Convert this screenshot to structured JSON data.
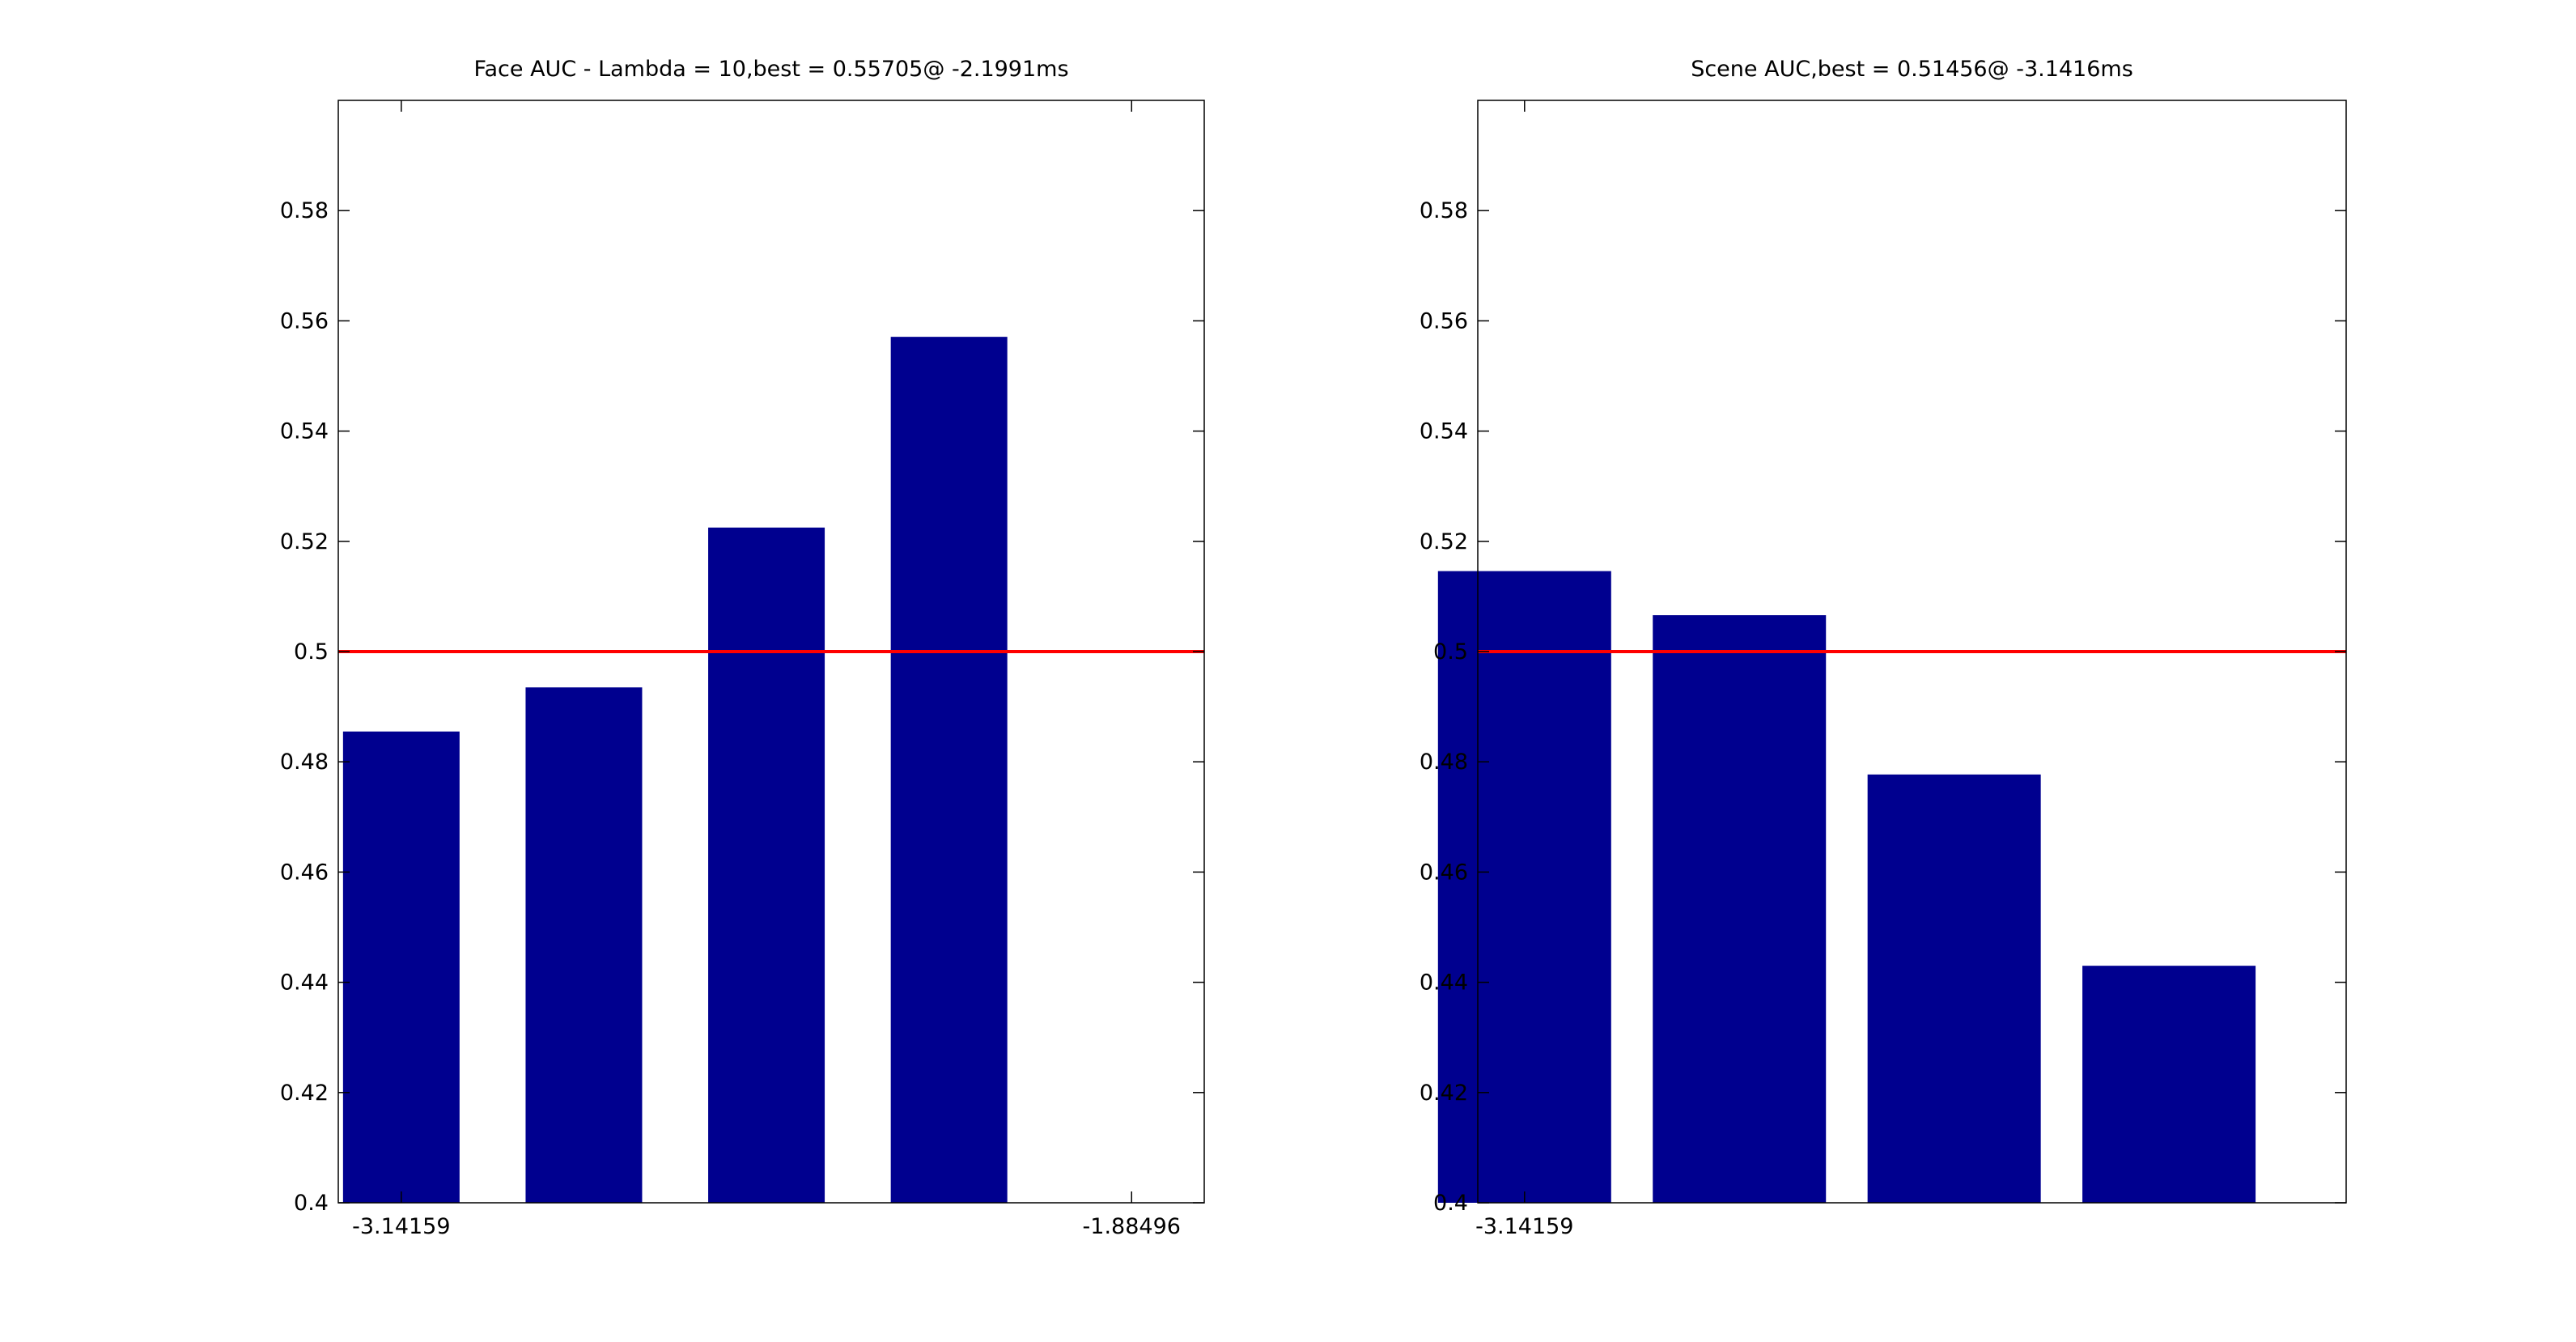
{
  "chart_data": [
    {
      "type": "bar",
      "title": "Face AUC - Lambda = 10,best = 0.55705@ -2.1991ms",
      "xlabel": "",
      "ylabel": "",
      "x": [
        -3.14159,
        -2.82743,
        -2.51327,
        -2.19911
      ],
      "values": [
        0.4855,
        0.4935,
        0.5225,
        0.5571
      ],
      "xlim": [
        -3.25,
        -1.76
      ],
      "ylim": [
        0.4,
        0.6
      ],
      "xticks": [
        -3.14159,
        -1.88496
      ],
      "xtick_labels": [
        "-3.14159",
        "-1.88496"
      ],
      "yticks": [
        0.4,
        0.42,
        0.44,
        0.46,
        0.48,
        0.5,
        0.52,
        0.54,
        0.56,
        0.58
      ],
      "ytick_labels": [
        "0.4",
        "0.42",
        "0.44",
        "0.46",
        "0.48",
        "0.5",
        "0.52",
        "0.54",
        "0.56",
        "0.58"
      ],
      "reference_line": {
        "y": 0.5,
        "color": "#ff0000"
      },
      "bar_color": "#00008f",
      "grid": false
    },
    {
      "type": "bar",
      "title": "Scene AUC,best = 0.51456@ -3.1416ms",
      "xlabel": "",
      "ylabel": "",
      "x": [
        -3.14159,
        -2.82743,
        -2.51327,
        -2.19911
      ],
      "values": [
        0.5146,
        0.5066,
        0.4777,
        0.443
      ],
      "xlim": [
        -3.21,
        -1.94
      ],
      "ylim": [
        0.4,
        0.6
      ],
      "xticks": [
        -3.14159
      ],
      "xtick_labels": [
        "-3.14159"
      ],
      "yticks": [
        0.4,
        0.42,
        0.44,
        0.46,
        0.48,
        0.5,
        0.52,
        0.54,
        0.56,
        0.58
      ],
      "ytick_labels": [
        "0.4",
        "0.42",
        "0.44",
        "0.46",
        "0.48",
        "0.5",
        "0.52",
        "0.54",
        "0.56",
        "0.58"
      ],
      "reference_line": {
        "y": 0.5,
        "color": "#ff0000"
      },
      "bar_color": "#00008f",
      "grid": false
    }
  ]
}
